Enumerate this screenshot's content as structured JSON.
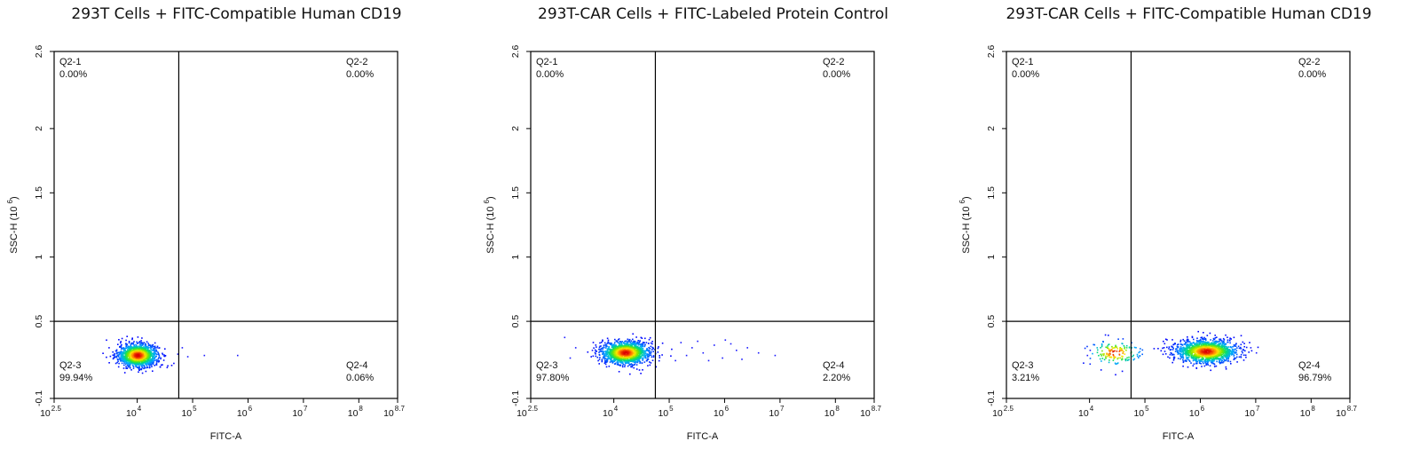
{
  "chart_data": [
    {
      "type": "scatter",
      "title": "293T Cells + FITC-Compatible Human CD19",
      "xlabel": "FITC-A",
      "ylabel": "SSC-H (10^6)",
      "x_scale": "log",
      "xlim_log10": [
        2.5,
        8.7
      ],
      "ylim": [
        -0.1,
        2.6
      ],
      "x_ticks": [
        {
          "log10": 2.5,
          "base": "10",
          "exp": "2.5"
        },
        {
          "log10": 4,
          "base": "10",
          "exp": "4"
        },
        {
          "log10": 5,
          "base": "10",
          "exp": "5"
        },
        {
          "log10": 6,
          "base": "10",
          "exp": "6"
        },
        {
          "log10": 7,
          "base": "10",
          "exp": "7"
        },
        {
          "log10": 8,
          "base": "10",
          "exp": "8"
        },
        {
          "log10": 8.7,
          "base": "10",
          "exp": "8.7"
        }
      ],
      "y_ticks": [
        "-0.1",
        "0.5",
        "1",
        "1.5",
        "2",
        "2.6"
      ],
      "y_tick_values": [
        -0.1,
        0.5,
        1,
        1.5,
        2,
        2.6
      ],
      "gate": {
        "x_log10": 4.75,
        "y": 0.5
      },
      "quadrants": [
        {
          "name": "Q2-1",
          "percent": "0.00%",
          "pos": "tl"
        },
        {
          "name": "Q2-2",
          "percent": "0.00%",
          "pos": "tr"
        },
        {
          "name": "Q2-3",
          "percent": "99.94%",
          "pos": "bl"
        },
        {
          "name": "Q2-4",
          "percent": "0.06%",
          "pos": "br"
        }
      ],
      "populations": [
        {
          "x_log10": 4.0,
          "y": 0.24,
          "sx": 0.18,
          "sy": 0.045,
          "n": 1400
        }
      ],
      "sparse_points": [
        [
          4.72,
          0.25
        ],
        [
          4.9,
          0.23
        ],
        [
          5.2,
          0.24
        ],
        [
          5.8,
          0.24
        ],
        [
          4.8,
          0.3
        ]
      ]
    },
    {
      "type": "scatter",
      "title": "293T-CAR Cells + FITC-Labeled Protein Control",
      "xlabel": "FITC-A",
      "ylabel": "SSC-H (10^6)",
      "x_scale": "log",
      "xlim_log10": [
        2.5,
        8.7
      ],
      "ylim": [
        -0.1,
        2.6
      ],
      "x_ticks": [
        {
          "log10": 2.5,
          "base": "10",
          "exp": "2.5"
        },
        {
          "log10": 4,
          "base": "10",
          "exp": "4"
        },
        {
          "log10": 5,
          "base": "10",
          "exp": "5"
        },
        {
          "log10": 6,
          "base": "10",
          "exp": "6"
        },
        {
          "log10": 7,
          "base": "10",
          "exp": "7"
        },
        {
          "log10": 8,
          "base": "10",
          "exp": "8"
        },
        {
          "log10": 8.7,
          "base": "10",
          "exp": "8.7"
        }
      ],
      "y_ticks": [
        "-0.1",
        "0.5",
        "1",
        "1.5",
        "2",
        "2.6"
      ],
      "y_tick_values": [
        -0.1,
        0.5,
        1,
        1.5,
        2,
        2.6
      ],
      "gate": {
        "x_log10": 4.75,
        "y": 0.5
      },
      "quadrants": [
        {
          "name": "Q2-1",
          "percent": "0.00%",
          "pos": "tl"
        },
        {
          "name": "Q2-2",
          "percent": "0.00%",
          "pos": "tr"
        },
        {
          "name": "Q2-3",
          "percent": "97.80%",
          "pos": "bl"
        },
        {
          "name": "Q2-4",
          "percent": "2.20%",
          "pos": "br"
        }
      ],
      "populations": [
        {
          "x_log10": 4.2,
          "y": 0.26,
          "sx": 0.22,
          "sy": 0.045,
          "n": 1500
        }
      ],
      "sparse_points": [
        [
          3.1,
          0.38
        ],
        [
          3.3,
          0.3
        ],
        [
          3.6,
          0.28
        ],
        [
          3.2,
          0.22
        ],
        [
          5.2,
          0.34
        ],
        [
          5.4,
          0.3
        ],
        [
          5.6,
          0.26
        ],
        [
          5.8,
          0.32
        ],
        [
          5.95,
          0.22
        ],
        [
          6.2,
          0.28
        ],
        [
          6.4,
          0.3
        ],
        [
          6.6,
          0.26
        ],
        [
          6.9,
          0.24
        ],
        [
          5.1,
          0.2
        ],
        [
          5.5,
          0.35
        ],
        [
          6.0,
          0.36
        ],
        [
          5.3,
          0.24
        ],
        [
          6.3,
          0.21
        ],
        [
          5.7,
          0.2
        ],
        [
          6.1,
          0.33
        ]
      ]
    },
    {
      "type": "scatter",
      "title": "293T-CAR Cells + FITC-Compatible Human CD19",
      "xlabel": "FITC-A",
      "ylabel": "SSC-H (10^6)",
      "x_scale": "log",
      "xlim_log10": [
        2.5,
        8.7
      ],
      "ylim": [
        -0.1,
        2.6
      ],
      "x_ticks": [
        {
          "log10": 2.5,
          "base": "10",
          "exp": "2.5"
        },
        {
          "log10": 4,
          "base": "10",
          "exp": "4"
        },
        {
          "log10": 5,
          "base": "10",
          "exp": "5"
        },
        {
          "log10": 6,
          "base": "10",
          "exp": "6"
        },
        {
          "log10": 7,
          "base": "10",
          "exp": "7"
        },
        {
          "log10": 8,
          "base": "10",
          "exp": "8"
        },
        {
          "log10": 8.7,
          "base": "10",
          "exp": "8.7"
        }
      ],
      "y_ticks": [
        "-0.1",
        "0.5",
        "1",
        "1.5",
        "2",
        "2.6"
      ],
      "y_tick_values": [
        -0.1,
        0.5,
        1,
        1.5,
        2,
        2.6
      ],
      "gate": {
        "x_log10": 4.75,
        "y": 0.5
      },
      "quadrants": [
        {
          "name": "Q2-1",
          "percent": "0.00%",
          "pos": "tl"
        },
        {
          "name": "Q2-2",
          "percent": "0.00%",
          "pos": "tr"
        },
        {
          "name": "Q2-3",
          "percent": "3.21%",
          "pos": "bl"
        },
        {
          "name": "Q2-4",
          "percent": "96.79%",
          "pos": "br"
        }
      ],
      "populations": [
        {
          "x_log10": 6.1,
          "y": 0.27,
          "sx": 0.28,
          "sy": 0.045,
          "n": 1500
        },
        {
          "x_log10": 4.45,
          "y": 0.26,
          "sx": 0.25,
          "sy": 0.05,
          "n": 160
        }
      ],
      "sparse_points": [
        [
          6.9,
          0.3
        ],
        [
          7.0,
          0.26
        ],
        [
          4.0,
          0.28
        ],
        [
          3.95,
          0.24
        ]
      ]
    }
  ]
}
